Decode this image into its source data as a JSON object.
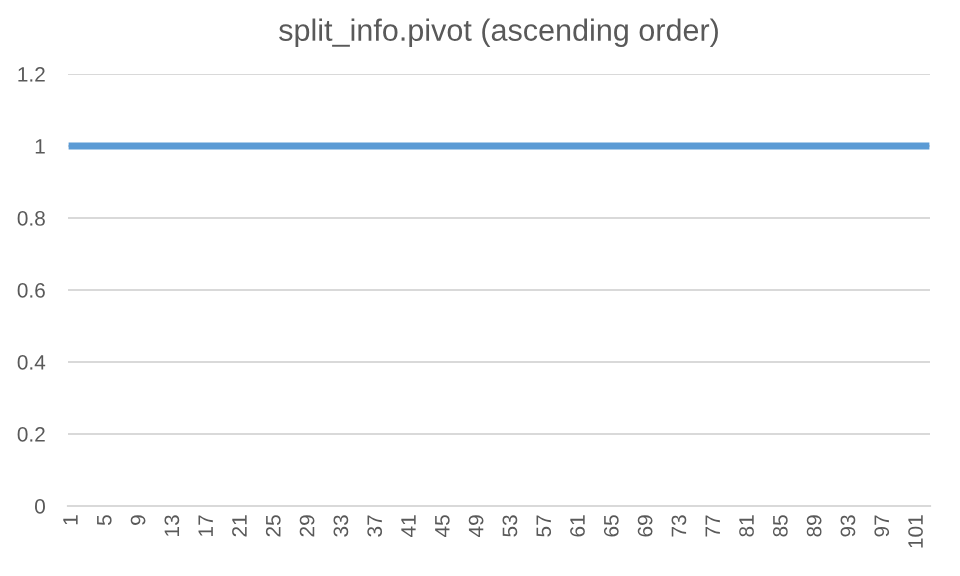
{
  "chart_data": {
    "type": "line",
    "title": "split_info.pivot (ascending order)",
    "categories": [
      "1",
      null,
      null,
      null,
      "5",
      null,
      null,
      null,
      "9",
      null,
      null,
      null,
      "13",
      null,
      null,
      null,
      "17",
      null,
      null,
      null,
      "21",
      null,
      null,
      null,
      "25",
      null,
      null,
      null,
      "29",
      null,
      null,
      null,
      "33",
      null,
      null,
      null,
      "37",
      null,
      null,
      null,
      "41",
      null,
      null,
      null,
      "45",
      null,
      null,
      null,
      "49",
      null,
      null,
      null,
      "53",
      null,
      null,
      null,
      "57",
      null,
      null,
      null,
      "61",
      null,
      null,
      null,
      "65",
      null,
      null,
      null,
      "69",
      null,
      null,
      null,
      "73",
      null,
      null,
      null,
      "77",
      null,
      null,
      null,
      "81",
      null,
      null,
      null,
      "85",
      null,
      null,
      null,
      "89",
      null,
      null,
      null,
      "93",
      null,
      null,
      null,
      "97",
      null,
      null,
      null,
      "101",
      null
    ],
    "series": [
      {
        "color": "#5b9bd5",
        "values": [
          1,
          1,
          1,
          1,
          1,
          1,
          1,
          1,
          1,
          1,
          1,
          1,
          1,
          1,
          1,
          1,
          1,
          1,
          1,
          1,
          1,
          1,
          1,
          1,
          1,
          1,
          1,
          1,
          1,
          1,
          1,
          1,
          1,
          1,
          1,
          1,
          1,
          1,
          1,
          1,
          1,
          1,
          1,
          1,
          1,
          1,
          1,
          1,
          1,
          1,
          1,
          1,
          1,
          1,
          1,
          1,
          1,
          1,
          1,
          1,
          1,
          1,
          1,
          1,
          1,
          1,
          1,
          1,
          1,
          1,
          1,
          1,
          1,
          1,
          1,
          1,
          1,
          1,
          1,
          1,
          1,
          1,
          1,
          1,
          1,
          1,
          1,
          1,
          1,
          1,
          1,
          1,
          1,
          1,
          1,
          1,
          1,
          1,
          1,
          1,
          1,
          1
        ]
      }
    ],
    "ylim": [
      0,
      1.2
    ],
    "yticks": [
      0,
      0.2,
      0.4,
      0.6,
      0.8,
      1,
      1.2
    ],
    "grid": "y",
    "marker": "none",
    "line_style": "solid",
    "legend": false
  }
}
